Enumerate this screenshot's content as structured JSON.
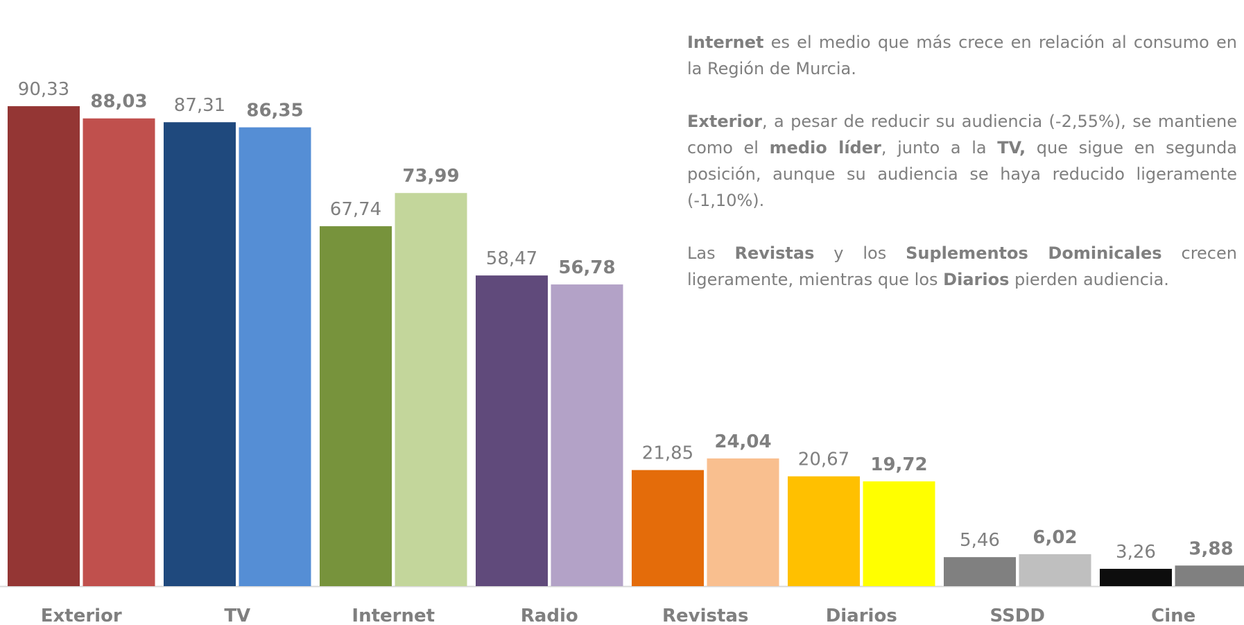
{
  "chart_data": {
    "type": "bar",
    "categories": [
      "Exterior",
      "TV",
      "Internet",
      "Radio",
      "Revistas",
      "Diarios",
      "SSDD",
      "Cine"
    ],
    "series": [
      {
        "colors": [
          "#943634",
          "#1f497d",
          "#77933c",
          "#604a7b",
          "#e46c0a",
          "#ffc000",
          "#808080",
          "#0d0d0d"
        ],
        "values": [
          90.33,
          87.31,
          67.74,
          58.47,
          21.85,
          20.67,
          5.46,
          3.26
        ],
        "value_labels": [
          "90,33",
          "87,31",
          "67,74",
          "58,47",
          "21,85",
          "20,67",
          "5,46",
          "3,26"
        ],
        "bold": false
      },
      {
        "colors": [
          "#c0504d",
          "#558ed5",
          "#c3d69b",
          "#b3a2c7",
          "#f9bf8f",
          "#ffff00",
          "#bfbfbf",
          "#808080"
        ],
        "values": [
          88.03,
          86.35,
          73.99,
          56.78,
          24.04,
          19.72,
          6.02,
          3.88
        ],
        "value_labels": [
          "88,03",
          "86,35",
          "73,99",
          "56,78",
          "24,04",
          "19,72",
          "6,02",
          "3,88"
        ],
        "bold": true
      }
    ]
  },
  "text": {
    "paragraphs": [
      {
        "runs": [
          {
            "text": "Internet",
            "bold": true
          },
          {
            "text": " es el medio que más crece en relación al consumo en la Región de Murcia.",
            "bold": false
          }
        ]
      },
      {
        "runs": [
          {
            "text": "Exterior",
            "bold": true
          },
          {
            "text": ", a pesar de reducir su audiencia (-2,55%), se mantiene como el ",
            "bold": false
          },
          {
            "text": "medio líder",
            "bold": true
          },
          {
            "text": ", junto a la ",
            "bold": false
          },
          {
            "text": "TV,",
            "bold": true
          },
          {
            "text": " que sigue en segunda posición, aunque su audiencia se haya reducido ligeramente (-1,10%).",
            "bold": false
          }
        ]
      },
      {
        "runs": [
          {
            "text": "Las ",
            "bold": false
          },
          {
            "text": "Revistas",
            "bold": true
          },
          {
            "text": " y los ",
            "bold": false
          },
          {
            "text": "Suplementos Dominicales",
            "bold": true
          },
          {
            "text": " crecen ligeramente, mientras que los ",
            "bold": false
          },
          {
            "text": "Diarios",
            "bold": true
          },
          {
            "text": " pierden audiencia.",
            "bold": false
          }
        ]
      }
    ]
  }
}
